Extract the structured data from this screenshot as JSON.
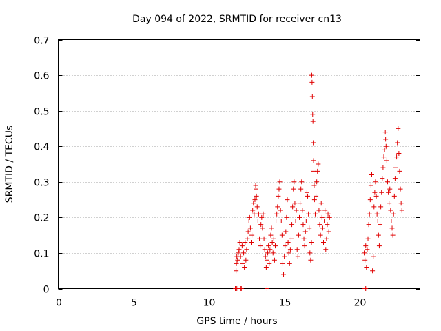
{
  "chart_data": {
    "type": "scatter",
    "title": "Day 094 of 2022, SRMTID for receiver cn13",
    "xlabel": "GPS time / hours",
    "ylabel": "SRMTID / TECUs",
    "xlim": [
      0,
      24
    ],
    "ylim": [
      0,
      0.7
    ],
    "x_ticks": [
      0,
      5,
      10,
      15,
      20
    ],
    "y_ticks": [
      0,
      0.1,
      0.2,
      0.3,
      0.4,
      0.5,
      0.6,
      0.7
    ],
    "x_tick_labels": [
      "0",
      "5",
      "10",
      "15",
      "20"
    ],
    "y_tick_labels": [
      "0",
      "0.1",
      "0.2",
      "0.3",
      "0.4",
      "0.5",
      "0.6",
      "0.7"
    ],
    "grid": true,
    "marker": "+",
    "color": "#e00000",
    "series": [
      {
        "name": "cn13",
        "points": [
          [
            11.75,
            0.0
          ],
          [
            11.85,
            0.0
          ],
          [
            12.1,
            0.0
          ],
          [
            12.15,
            0.0
          ],
          [
            13.85,
            0.0
          ],
          [
            20.35,
            0.0
          ],
          [
            20.4,
            0.0
          ],
          [
            11.8,
            0.05
          ],
          [
            11.82,
            0.07
          ],
          [
            11.85,
            0.09
          ],
          [
            11.9,
            0.08
          ],
          [
            11.95,
            0.1
          ],
          [
            12.0,
            0.11
          ],
          [
            12.05,
            0.13
          ],
          [
            12.1,
            0.09
          ],
          [
            12.2,
            0.12
          ],
          [
            12.25,
            0.07
          ],
          [
            12.3,
            0.1
          ],
          [
            12.35,
            0.06
          ],
          [
            12.4,
            0.13
          ],
          [
            12.45,
            0.08
          ],
          [
            12.5,
            0.11
          ],
          [
            12.55,
            0.14
          ],
          [
            12.6,
            0.16
          ],
          [
            12.65,
            0.19
          ],
          [
            12.7,
            0.2
          ],
          [
            12.75,
            0.17
          ],
          [
            12.8,
            0.13
          ],
          [
            12.85,
            0.15
          ],
          [
            12.9,
            0.22
          ],
          [
            12.95,
            0.24
          ],
          [
            13.0,
            0.21
          ],
          [
            13.05,
            0.25
          ],
          [
            13.1,
            0.29
          ],
          [
            13.12,
            0.28
          ],
          [
            13.15,
            0.26
          ],
          [
            13.2,
            0.23
          ],
          [
            13.25,
            0.19
          ],
          [
            13.3,
            0.21
          ],
          [
            13.35,
            0.14
          ],
          [
            13.4,
            0.12
          ],
          [
            13.45,
            0.18
          ],
          [
            13.5,
            0.2
          ],
          [
            13.55,
            0.17
          ],
          [
            13.6,
            0.21
          ],
          [
            13.65,
            0.14
          ],
          [
            13.7,
            0.11
          ],
          [
            13.75,
            0.09
          ],
          [
            13.8,
            0.06
          ],
          [
            13.85,
            0.08
          ],
          [
            13.9,
            0.1
          ],
          [
            13.95,
            0.12
          ],
          [
            14.0,
            0.07
          ],
          [
            14.05,
            0.11
          ],
          [
            14.1,
            0.15
          ],
          [
            14.15,
            0.17
          ],
          [
            14.2,
            0.13
          ],
          [
            14.25,
            0.1
          ],
          [
            14.3,
            0.14
          ],
          [
            14.35,
            0.08
          ],
          [
            14.4,
            0.12
          ],
          [
            14.45,
            0.19
          ],
          [
            14.5,
            0.21
          ],
          [
            14.55,
            0.23
          ],
          [
            14.6,
            0.26
          ],
          [
            14.65,
            0.28
          ],
          [
            14.7,
            0.3
          ],
          [
            14.75,
            0.22
          ],
          [
            14.8,
            0.19
          ],
          [
            14.85,
            0.15
          ],
          [
            14.9,
            0.07
          ],
          [
            14.95,
            0.04
          ],
          [
            15.0,
            0.09
          ],
          [
            15.05,
            0.12
          ],
          [
            15.1,
            0.16
          ],
          [
            15.15,
            0.2
          ],
          [
            15.2,
            0.25
          ],
          [
            15.25,
            0.13
          ],
          [
            15.3,
            0.1
          ],
          [
            15.35,
            0.07
          ],
          [
            15.4,
            0.11
          ],
          [
            15.45,
            0.14
          ],
          [
            15.5,
            0.18
          ],
          [
            15.55,
            0.23
          ],
          [
            15.6,
            0.28
          ],
          [
            15.65,
            0.3
          ],
          [
            15.7,
            0.24
          ],
          [
            15.75,
            0.19
          ],
          [
            15.8,
            0.22
          ],
          [
            15.85,
            0.11
          ],
          [
            15.9,
            0.09
          ],
          [
            15.95,
            0.15
          ],
          [
            16.0,
            0.2
          ],
          [
            16.05,
            0.24
          ],
          [
            16.1,
            0.28
          ],
          [
            16.15,
            0.3
          ],
          [
            16.2,
            0.22
          ],
          [
            16.25,
            0.18
          ],
          [
            16.3,
            0.14
          ],
          [
            16.35,
            0.12
          ],
          [
            16.4,
            0.16
          ],
          [
            16.45,
            0.19
          ],
          [
            16.5,
            0.27
          ],
          [
            16.55,
            0.26
          ],
          [
            16.6,
            0.21
          ],
          [
            16.65,
            0.17
          ],
          [
            16.7,
            0.1
          ],
          [
            16.75,
            0.08
          ],
          [
            16.8,
            0.13
          ],
          [
            16.82,
            0.6
          ],
          [
            16.84,
            0.58
          ],
          [
            16.86,
            0.54
          ],
          [
            16.88,
            0.49
          ],
          [
            16.9,
            0.47
          ],
          [
            16.92,
            0.41
          ],
          [
            16.94,
            0.36
          ],
          [
            16.96,
            0.33
          ],
          [
            16.98,
            0.29
          ],
          [
            17.0,
            0.25
          ],
          [
            17.05,
            0.21
          ],
          [
            17.1,
            0.26
          ],
          [
            17.15,
            0.3
          ],
          [
            17.2,
            0.33
          ],
          [
            17.25,
            0.35
          ],
          [
            17.3,
            0.22
          ],
          [
            17.35,
            0.18
          ],
          [
            17.4,
            0.15
          ],
          [
            17.45,
            0.24
          ],
          [
            17.5,
            0.2
          ],
          [
            17.55,
            0.17
          ],
          [
            17.6,
            0.13
          ],
          [
            17.65,
            0.19
          ],
          [
            17.7,
            0.22
          ],
          [
            17.75,
            0.11
          ],
          [
            17.8,
            0.14
          ],
          [
            17.85,
            0.18
          ],
          [
            17.9,
            0.21
          ],
          [
            17.95,
            0.16
          ],
          [
            18.0,
            0.2
          ],
          [
            20.3,
            0.1
          ],
          [
            20.35,
            0.08
          ],
          [
            20.4,
            0.12
          ],
          [
            20.45,
            0.06
          ],
          [
            20.5,
            0.11
          ],
          [
            20.55,
            0.14
          ],
          [
            20.6,
            0.18
          ],
          [
            20.65,
            0.21
          ],
          [
            20.7,
            0.25
          ],
          [
            20.75,
            0.29
          ],
          [
            20.8,
            0.32
          ],
          [
            20.85,
            0.05
          ],
          [
            20.9,
            0.09
          ],
          [
            20.95,
            0.23
          ],
          [
            21.0,
            0.27
          ],
          [
            21.05,
            0.3
          ],
          [
            21.1,
            0.26
          ],
          [
            21.15,
            0.21
          ],
          [
            21.2,
            0.19
          ],
          [
            21.25,
            0.15
          ],
          [
            21.3,
            0.12
          ],
          [
            21.35,
            0.18
          ],
          [
            21.4,
            0.23
          ],
          [
            21.45,
            0.27
          ],
          [
            21.5,
            0.31
          ],
          [
            21.55,
            0.34
          ],
          [
            21.6,
            0.37
          ],
          [
            21.65,
            0.39
          ],
          [
            21.7,
            0.44
          ],
          [
            21.72,
            0.42
          ],
          [
            21.75,
            0.4
          ],
          [
            21.8,
            0.36
          ],
          [
            21.85,
            0.3
          ],
          [
            21.9,
            0.27
          ],
          [
            21.95,
            0.24
          ],
          [
            22.0,
            0.28
          ],
          [
            22.05,
            0.22
          ],
          [
            22.1,
            0.19
          ],
          [
            22.15,
            0.17
          ],
          [
            22.2,
            0.15
          ],
          [
            22.25,
            0.21
          ],
          [
            22.3,
            0.26
          ],
          [
            22.35,
            0.31
          ],
          [
            22.4,
            0.34
          ],
          [
            22.45,
            0.37
          ],
          [
            22.5,
            0.41
          ],
          [
            22.55,
            0.45
          ],
          [
            22.6,
            0.38
          ],
          [
            22.65,
            0.33
          ],
          [
            22.7,
            0.28
          ],
          [
            22.75,
            0.24
          ],
          [
            22.8,
            0.22
          ]
        ]
      }
    ]
  }
}
